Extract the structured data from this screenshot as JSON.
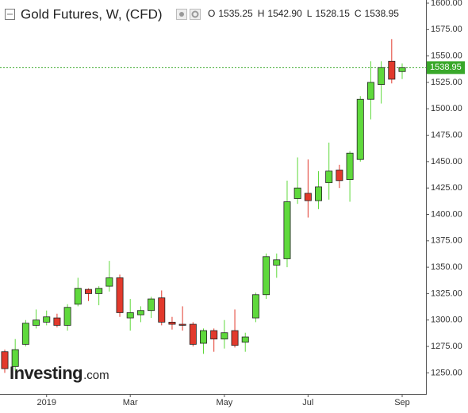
{
  "chart_data": {
    "type": "candlestick",
    "title": "Gold Futures, W, (CFD)",
    "legend_values": [
      {
        "name": "O",
        "value": 1535.25
      },
      {
        "name": "H",
        "value": 1542.9,
        "label": "1542.90"
      },
      {
        "name": "L",
        "value": 1528.15
      },
      {
        "name": "C",
        "value": 1538.95
      }
    ],
    "last_price": 1538.95,
    "watermark": "Investing",
    "watermark_suffix": ".com",
    "categories": [
      null,
      null,
      null,
      null,
      "2019",
      null,
      null,
      null,
      null,
      null,
      null,
      null,
      "Mar",
      null,
      null,
      null,
      null,
      null,
      null,
      null,
      null,
      "May",
      null,
      null,
      null,
      null,
      null,
      null,
      null,
      "Jul",
      null,
      null,
      null,
      null,
      null,
      null,
      null,
      null,
      "Sep"
    ],
    "open": [
      1270,
      1256,
      1277,
      1295,
      1298,
      1302,
      1295,
      1315,
      1329,
      1325,
      1332,
      1340,
      1302,
      1305,
      1309,
      1321,
      1298,
      1296,
      1296,
      1278,
      1290,
      1282,
      1290,
      1279,
      1302,
      1324,
      1352,
      1358,
      1415,
      1420,
      1413,
      1430,
      1442,
      1433,
      1452,
      1509,
      1523,
      1545,
      1535.25
    ],
    "high": [
      1272,
      1282,
      1300,
      1310,
      1309,
      1306,
      1315,
      1340,
      1330,
      1332,
      1356,
      1343,
      1320,
      1313,
      1322,
      1328,
      1303,
      1313,
      1298,
      1292,
      1292,
      1300,
      1310,
      1288,
      1326,
      1363,
      1363,
      1432,
      1454,
      1452,
      1441,
      1468,
      1447,
      1460,
      1512,
      1545,
      1545,
      1566,
      1542.9
    ],
    "low": [
      1250,
      1252,
      1275,
      1292,
      1295,
      1293,
      1290,
      1313,
      1318,
      1314,
      1327,
      1303,
      1290,
      1298,
      1302,
      1295,
      1291,
      1290,
      1275,
      1268,
      1270,
      1273,
      1274,
      1270,
      1298,
      1320,
      1340,
      1350,
      1410,
      1397,
      1405,
      1414,
      1425,
      1412,
      1450,
      1490,
      1505,
      1524,
      1528.15
    ],
    "close": [
      1254,
      1272,
      1297,
      1300,
      1303,
      1295,
      1312,
      1330,
      1325,
      1330,
      1340,
      1307,
      1307,
      1309,
      1320,
      1298,
      1296,
      1295,
      1277,
      1290,
      1282,
      1288,
      1276,
      1284,
      1324,
      1360,
      1357,
      1412,
      1425,
      1413,
      1426,
      1441,
      1432,
      1458,
      1509,
      1525,
      1539,
      1528,
      1538.95
    ],
    "up_color": "#5fd93c",
    "down_color": "#e2392c",
    "last_price_color": "#39a82a",
    "ylim": [
      1230,
      1603
    ],
    "yticks": [
      {
        "value": 1250,
        "label": "1250.00"
      },
      {
        "value": 1275,
        "label": "1275.00"
      },
      {
        "value": 1300,
        "label": "1300.00"
      },
      {
        "value": 1325,
        "label": "1325.00"
      },
      {
        "value": 1350,
        "label": "1350.00"
      },
      {
        "value": 1375,
        "label": "1375.00"
      },
      {
        "value": 1400,
        "label": "1400.00"
      },
      {
        "value": 1425,
        "label": "1425.00"
      },
      {
        "value": 1450,
        "label": "1450.00"
      },
      {
        "value": 1475,
        "label": "1475.00"
      },
      {
        "value": 1500,
        "label": "1500.00"
      },
      {
        "value": 1525,
        "label": "1525.00"
      },
      {
        "value": 1550,
        "label": "1550.00"
      },
      {
        "value": 1575,
        "label": "1575.00"
      },
      {
        "value": 1600,
        "label": "1600.00"
      }
    ],
    "grid": false
  }
}
